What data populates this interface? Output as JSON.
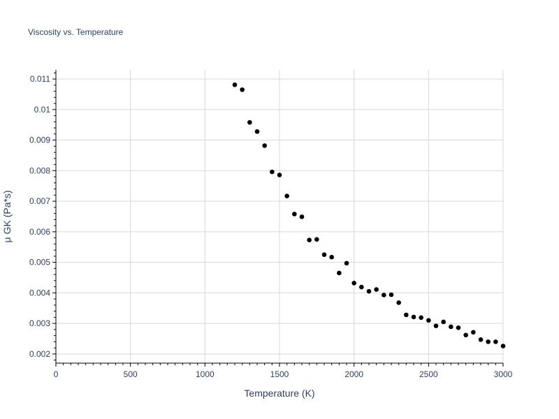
{
  "chart_data": {
    "type": "scatter",
    "title": "Viscosity vs. Temperature",
    "xlabel": "Temperature (K)",
    "ylabel": "μ GK (Pa*s)",
    "xlim": [
      0,
      3000
    ],
    "ylim": [
      0.0017,
      0.0113
    ],
    "x_ticks": [
      0,
      500,
      1000,
      1500,
      2000,
      2500,
      3000
    ],
    "x_tick_labels": [
      "0",
      "500",
      "1000",
      "1500",
      "2000",
      "2500",
      "3000"
    ],
    "y_ticks": [
      0.002,
      0.003,
      0.004,
      0.005,
      0.006,
      0.007,
      0.008,
      0.009,
      0.01,
      0.011
    ],
    "y_tick_labels": [
      "0.002",
      "0.003",
      "0.004",
      "0.005",
      "0.006",
      "0.007",
      "0.008",
      "0.009",
      "0.01",
      "0.011"
    ],
    "grid": true,
    "marker_color": "#000000",
    "gridline_color": "#d8d8d8",
    "text_color": "#2a3f5f",
    "x": [
      1200,
      1250,
      1300,
      1350,
      1400,
      1450,
      1500,
      1550,
      1600,
      1650,
      1700,
      1750,
      1800,
      1850,
      1900,
      1950,
      2000,
      2050,
      2100,
      2150,
      2200,
      2250,
      2300,
      2350,
      2400,
      2450,
      2500,
      2550,
      2600,
      2650,
      2700,
      2750,
      2800,
      2850,
      2900,
      2950,
      3000
    ],
    "y": [
      0.01081,
      0.01065,
      0.00958,
      0.00928,
      0.00882,
      0.00796,
      0.00786,
      0.00717,
      0.00658,
      0.00649,
      0.00573,
      0.00575,
      0.00525,
      0.00517,
      0.00465,
      0.00497,
      0.00432,
      0.00419,
      0.00405,
      0.00411,
      0.00393,
      0.00394,
      0.00368,
      0.00328,
      0.00321,
      0.00319,
      0.0031,
      0.00292,
      0.00305,
      0.00289,
      0.00286,
      0.00262,
      0.00271,
      0.00247,
      0.0024,
      0.0024,
      0.00226
    ]
  }
}
